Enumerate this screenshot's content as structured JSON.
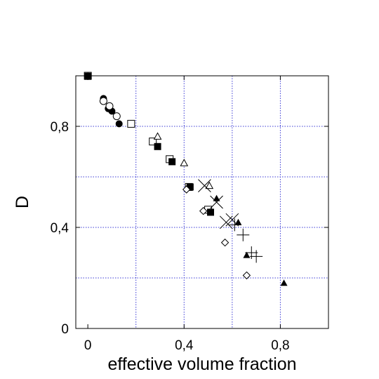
{
  "chart_data": {
    "type": "scatter",
    "xlabel": "effective volume fraction",
    "ylabel": "D",
    "xlim": [
      -0.05,
      1.0
    ],
    "ylim": [
      0,
      1.0
    ],
    "x_ticks": [
      {
        "value": 0.0,
        "label": "0"
      },
      {
        "value": 0.4,
        "label": "0,4"
      },
      {
        "value": 0.8,
        "label": "0,8"
      }
    ],
    "y_ticks": [
      {
        "value": 0.0,
        "label": "0"
      },
      {
        "value": 0.4,
        "label": "0,4"
      },
      {
        "value": 0.8,
        "label": "0,8"
      }
    ],
    "grid_x": [
      0.2,
      0.4,
      0.6,
      0.8
    ],
    "grid_y": [
      0.2,
      0.4,
      0.6,
      0.8,
      1.0
    ],
    "grid": true,
    "grid_color": "#3b3bd6",
    "series": [
      {
        "marker": "filled-circle",
        "points": [
          [
            0.065,
            0.91
          ],
          [
            0.085,
            0.87
          ],
          [
            0.1,
            0.86
          ],
          [
            0.13,
            0.81
          ]
        ]
      },
      {
        "marker": "open-circle",
        "points": [
          [
            0.065,
            0.9
          ],
          [
            0.09,
            0.88
          ],
          [
            0.12,
            0.84
          ]
        ]
      },
      {
        "marker": "open-square",
        "points": [
          [
            0.0,
            1.0
          ],
          [
            0.18,
            0.81
          ],
          [
            0.27,
            0.74
          ],
          [
            0.34,
            0.67
          ],
          [
            0.42,
            0.56
          ],
          [
            0.5,
            0.47
          ]
        ]
      },
      {
        "marker": "filled-square",
        "points": [
          [
            0.0,
            0.998
          ],
          [
            0.29,
            0.72
          ],
          [
            0.35,
            0.66
          ],
          [
            0.425,
            0.56
          ],
          [
            0.51,
            0.46
          ]
        ]
      },
      {
        "marker": "open-triangle",
        "points": [
          [
            0.29,
            0.76
          ],
          [
            0.4,
            0.655
          ],
          [
            0.505,
            0.565
          ]
        ]
      },
      {
        "marker": "filled-triangle",
        "points": [
          [
            0.0,
            1.0
          ],
          [
            0.535,
            0.515
          ],
          [
            0.625,
            0.42
          ],
          [
            0.66,
            0.29
          ],
          [
            0.815,
            0.18
          ]
        ]
      },
      {
        "marker": "open-diamond",
        "points": [
          [
            0.41,
            0.55
          ],
          [
            0.48,
            0.465
          ],
          [
            0.57,
            0.34
          ],
          [
            0.66,
            0.21
          ]
        ]
      },
      {
        "marker": "cross",
        "points": [
          [
            0.485,
            0.565
          ],
          [
            0.535,
            0.5
          ],
          [
            0.575,
            0.42
          ],
          [
            0.6,
            0.43
          ]
        ]
      },
      {
        "marker": "plus",
        "points": [
          [
            0.61,
            0.41
          ],
          [
            0.645,
            0.37
          ],
          [
            0.68,
            0.3
          ],
          [
            0.7,
            0.285
          ]
        ]
      }
    ]
  }
}
